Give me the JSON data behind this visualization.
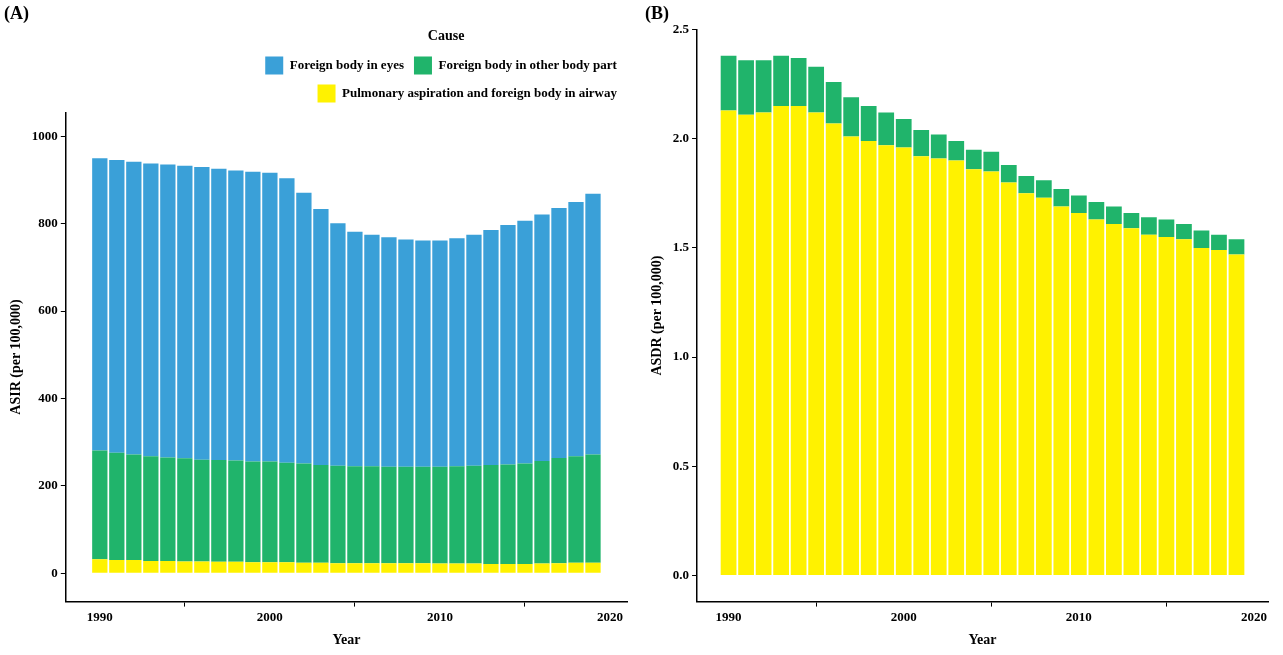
{
  "chart_data": [
    {
      "type": "bar",
      "title": "(A)",
      "xlabel": "Year",
      "ylabel": "ASIR (per 100,000)",
      "legend_title": "Cause",
      "legend": "top right",
      "stacked": true,
      "x": [
        1990,
        1991,
        1992,
        1993,
        1994,
        1995,
        1996,
        1997,
        1998,
        1999,
        2000,
        2001,
        2002,
        2003,
        2004,
        2005,
        2006,
        2007,
        2008,
        2009,
        2010,
        2011,
        2012,
        2013,
        2014,
        2015,
        2016,
        2017,
        2018,
        2019
      ],
      "series": [
        {
          "name": "Pulmonary aspiration and foreign body in airway",
          "color": "#fff200",
          "values": [
            32,
            30,
            30,
            28,
            28,
            27,
            27,
            26,
            26,
            25,
            25,
            25,
            24,
            24,
            23,
            23,
            23,
            23,
            23,
            23,
            22,
            22,
            22,
            21,
            21,
            21,
            22,
            23,
            24,
            24
          ]
        },
        {
          "name": "Foreign body in other body part",
          "color": "#20b46b",
          "values": [
            249,
            246,
            242,
            240,
            237,
            236,
            233,
            233,
            232,
            231,
            231,
            228,
            227,
            224,
            223,
            222,
            222,
            221,
            221,
            221,
            222,
            223,
            224,
            227,
            228,
            230,
            235,
            241,
            244,
            248
          ]
        },
        {
          "name": "Foreign body in eyes",
          "color": "#3aa0d8",
          "values": [
            669,
            670,
            670,
            670,
            671,
            670,
            670,
            667,
            664,
            663,
            661,
            651,
            620,
            586,
            555,
            537,
            530,
            525,
            520,
            518,
            518,
            522,
            529,
            538,
            548,
            556,
            564,
            572,
            582,
            597
          ]
        }
      ],
      "xlim": [
        1988,
        2021
      ],
      "xticks": [
        1990,
        2000,
        2010,
        2020
      ],
      "ylim": [
        -65,
        1055
      ],
      "yticks": [
        0,
        200,
        400,
        600,
        800,
        1000
      ]
    },
    {
      "type": "bar",
      "title": "(B)",
      "xlabel": "Year",
      "ylabel": "ASDR (per 100,000)",
      "stacked": true,
      "x": [
        1990,
        1991,
        1992,
        1993,
        1994,
        1995,
        1996,
        1997,
        1998,
        1999,
        2000,
        2001,
        2002,
        2003,
        2004,
        2005,
        2006,
        2007,
        2008,
        2009,
        2010,
        2011,
        2012,
        2013,
        2014,
        2015,
        2016,
        2017,
        2018,
        2019
      ],
      "series": [
        {
          "color": "#fff200",
          "values": [
            2.13,
            2.11,
            2.12,
            2.15,
            2.15,
            2.12,
            2.07,
            2.01,
            1.99,
            1.97,
            1.96,
            1.92,
            1.91,
            1.9,
            1.86,
            1.85,
            1.8,
            1.75,
            1.73,
            1.69,
            1.66,
            1.63,
            1.61,
            1.59,
            1.56,
            1.55,
            1.54,
            1.5,
            1.49,
            1.47
          ]
        },
        {
          "color": "#20b46b",
          "values": [
            0.25,
            0.25,
            0.24,
            0.23,
            0.22,
            0.21,
            0.19,
            0.18,
            0.16,
            0.15,
            0.13,
            0.12,
            0.11,
            0.09,
            0.09,
            0.09,
            0.08,
            0.08,
            0.08,
            0.08,
            0.08,
            0.08,
            0.08,
            0.07,
            0.08,
            0.08,
            0.07,
            0.08,
            0.07,
            0.07
          ]
        }
      ],
      "xlim": [
        1988.2,
        2020.8
      ],
      "xticks": [
        1990,
        2000,
        2010,
        2020
      ],
      "ylim": [
        -0.12,
        2.5
      ],
      "yticks": [
        {
          "value": 0,
          "label": "0.0"
        },
        {
          "value": 0.5,
          "label": "0.5"
        },
        {
          "value": 1,
          "label": "1.0"
        },
        {
          "value": 1.5,
          "label": "1.5"
        },
        {
          "value": 2,
          "label": "2.0"
        },
        {
          "value": 2.5,
          "label": "2.5"
        }
      ]
    }
  ]
}
